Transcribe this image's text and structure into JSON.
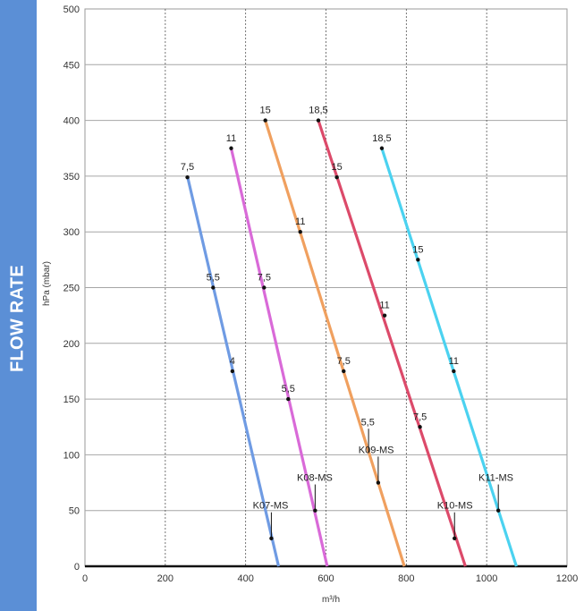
{
  "sidebar": {
    "label": "FLOW RATE",
    "color": "#5b8fd6"
  },
  "chart_data": {
    "type": "line",
    "xlabel": "m³/h",
    "ylabel": "hPa (mbar)",
    "xlim": [
      0,
      1200
    ],
    "ylim": [
      0,
      500
    ],
    "xticks": [
      0,
      200,
      400,
      600,
      800,
      1000,
      1200
    ],
    "yticks": [
      0,
      50,
      100,
      150,
      200,
      250,
      300,
      350,
      400,
      450,
      500
    ],
    "grid": {
      "x": "dashed",
      "y": "solid"
    },
    "series": [
      {
        "name": "K07-MS",
        "color": "#6f9be3",
        "line": [
          [
            255,
            350
          ],
          [
            482,
            0
          ]
        ],
        "points": [
          {
            "x": 255,
            "y": 349,
            "label": "7,5"
          },
          {
            "x": 319,
            "y": 250,
            "label": "5,5"
          },
          {
            "x": 367,
            "y": 175,
            "label": "4"
          },
          {
            "x": 464,
            "y": 25,
            "label": ""
          }
        ]
      },
      {
        "name": "K08-MS",
        "color": "#d96ad8",
        "line": [
          [
            364,
            375
          ],
          [
            603,
            0
          ]
        ],
        "points": [
          {
            "x": 364,
            "y": 375,
            "label": "11"
          },
          {
            "x": 446,
            "y": 250,
            "label": "7,5"
          },
          {
            "x": 506,
            "y": 150,
            "label": "5,5"
          },
          {
            "x": 573,
            "y": 50,
            "label": ""
          }
        ]
      },
      {
        "name": "K09-MS",
        "color": "#f0a05f",
        "line": [
          [
            449,
            400
          ],
          [
            795,
            0
          ]
        ],
        "points": [
          {
            "x": 449,
            "y": 400,
            "label": "15"
          },
          {
            "x": 536,
            "y": 300,
            "label": "11"
          },
          {
            "x": 644,
            "y": 175,
            "label": "7,5"
          },
          {
            "x": 730,
            "y": 75,
            "label": ""
          }
        ]
      },
      {
        "name": "K10-MS",
        "color": "#dc4a6a",
        "line": [
          [
            581,
            400
          ],
          [
            947,
            0
          ]
        ],
        "points": [
          {
            "x": 581,
            "y": 400,
            "label": "18,5"
          },
          {
            "x": 627,
            "y": 349,
            "label": "15"
          },
          {
            "x": 746,
            "y": 225,
            "label": "11"
          },
          {
            "x": 834,
            "y": 125,
            "label": "7,5"
          },
          {
            "x": 920,
            "y": 25,
            "label": ""
          }
        ]
      },
      {
        "name": "K11-MS",
        "color": "#4bd2f0",
        "line": [
          [
            739,
            375
          ],
          [
            1074,
            0
          ]
        ],
        "points": [
          {
            "x": 739,
            "y": 375,
            "label": "18,5"
          },
          {
            "x": 829,
            "y": 275,
            "label": "15"
          },
          {
            "x": 918,
            "y": 175,
            "label": "11"
          },
          {
            "x": 1029,
            "y": 50,
            "label": ""
          }
        ]
      }
    ],
    "annotations": [
      {
        "text": "K07-MS",
        "x": 462,
        "y": 50,
        "anchor_x": 464,
        "anchor_y": 25
      },
      {
        "text": "K08-MS",
        "x": 572,
        "y": 75,
        "anchor_x": 573,
        "anchor_y": 50
      },
      {
        "text": "5,5",
        "x": 704,
        "y": 125,
        "anchor_x": 706,
        "anchor_y": 102
      },
      {
        "text": "K09-MS",
        "x": 725,
        "y": 100,
        "anchor_x": 730,
        "anchor_y": 75
      },
      {
        "text": "K10-MS",
        "x": 921,
        "y": 50,
        "anchor_x": 920,
        "anchor_y": 25
      },
      {
        "text": "K11-MS",
        "x": 1023,
        "y": 75,
        "anchor_x": 1029,
        "anchor_y": 50
      }
    ]
  }
}
